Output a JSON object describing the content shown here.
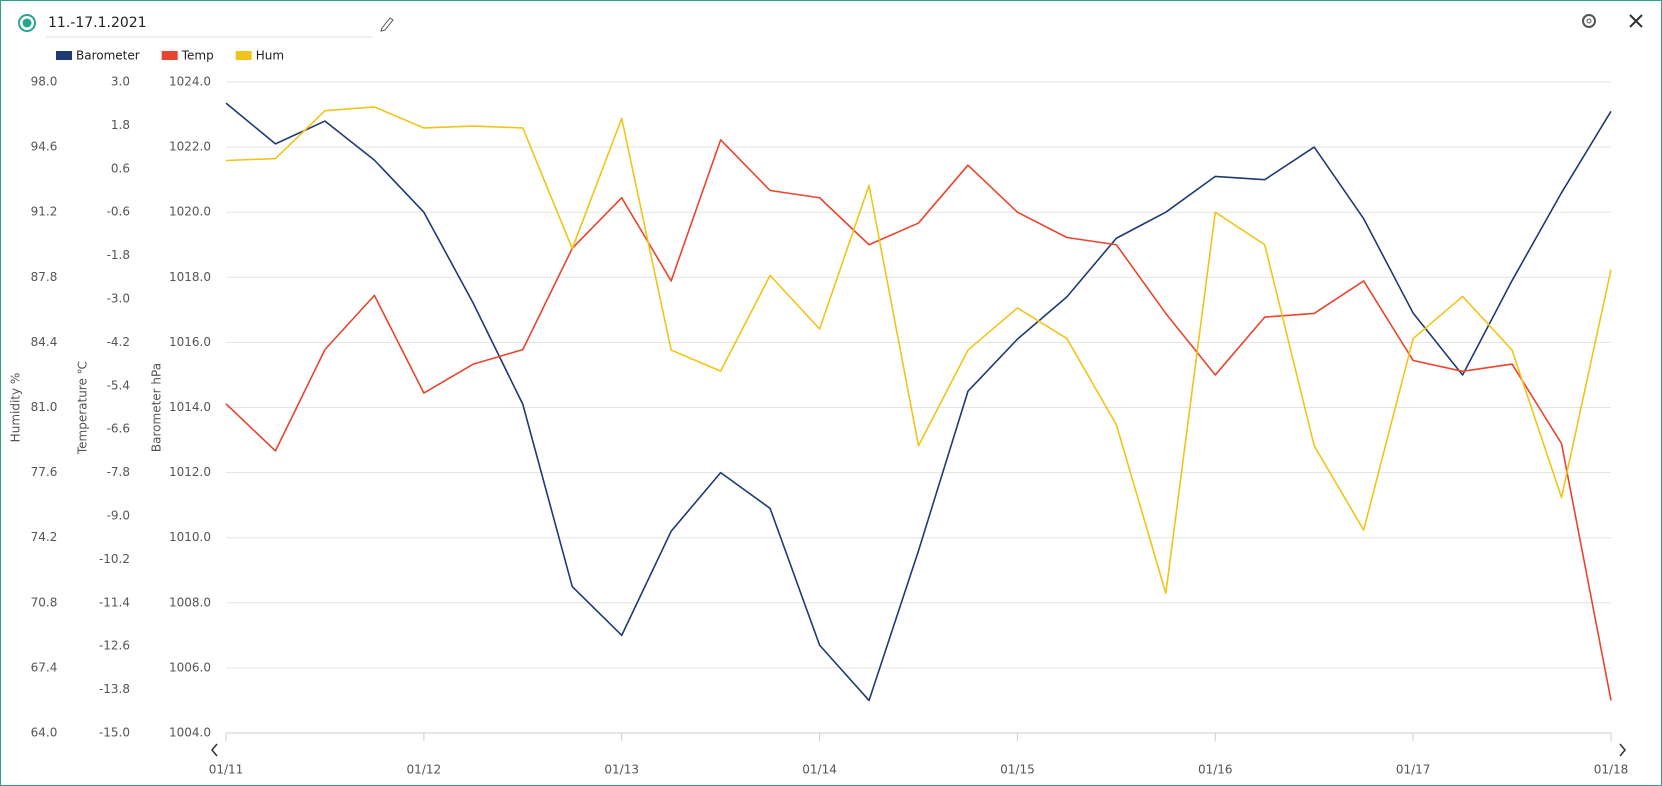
{
  "header": {
    "title": "11.-17.1.2021"
  },
  "chart_data": {
    "type": "line",
    "xlim": [
      11,
      18
    ],
    "xticks": [
      {
        "value": 11,
        "label": "01/11"
      },
      {
        "value": 12,
        "label": "01/12"
      },
      {
        "value": 13,
        "label": "01/13"
      },
      {
        "value": 14,
        "label": "01/14"
      },
      {
        "value": 15,
        "label": "01/15"
      },
      {
        "value": 16,
        "label": "01/16"
      },
      {
        "value": 17,
        "label": "01/17"
      },
      {
        "value": 18,
        "label": "01/18"
      }
    ],
    "ylabel": "Barometer hPa",
    "ylim": [
      1004,
      1024
    ],
    "yticks": [
      {
        "value": 1004,
        "label": "1004.0"
      },
      {
        "value": 1006,
        "label": "1006.0"
      },
      {
        "value": 1008,
        "label": "1008.0"
      },
      {
        "value": 1010,
        "label": "1010.0"
      },
      {
        "value": 1012,
        "label": "1012.0"
      },
      {
        "value": 1014,
        "label": "1014.0"
      },
      {
        "value": 1016,
        "label": "1016.0"
      },
      {
        "value": 1018,
        "label": "1018.0"
      },
      {
        "value": 1020,
        "label": "1020.0"
      },
      {
        "value": 1022,
        "label": "1022.0"
      },
      {
        "value": 1024,
        "label": "1024.0"
      }
    ],
    "y2label": "Temperature ℃",
    "y2lim": [
      -15,
      3
    ],
    "y2ticks": [
      {
        "value": -15,
        "label": "-15.0"
      },
      {
        "value": -13.8,
        "label": "-13.8"
      },
      {
        "value": -12.6,
        "label": "-12.6"
      },
      {
        "value": -11.4,
        "label": "-11.4"
      },
      {
        "value": -10.2,
        "label": "-10.2"
      },
      {
        "value": -9,
        "label": "-9.0"
      },
      {
        "value": -7.8,
        "label": "-7.8"
      },
      {
        "value": -6.6,
        "label": "-6.6"
      },
      {
        "value": -5.4,
        "label": "-5.4"
      },
      {
        "value": -4.2,
        "label": "-4.2"
      },
      {
        "value": -3,
        "label": "-3.0"
      },
      {
        "value": -1.8,
        "label": "-1.8"
      },
      {
        "value": -0.6,
        "label": "-0.6"
      },
      {
        "value": 0.6,
        "label": "0.6"
      },
      {
        "value": 1.8,
        "label": "1.8"
      },
      {
        "value": 3,
        "label": "3.0"
      }
    ],
    "y3label": "Humidity %",
    "y3lim": [
      64,
      98
    ],
    "y3ticks": [
      {
        "value": 64,
        "label": "64.0"
      },
      {
        "value": 67.4,
        "label": "67.4"
      },
      {
        "value": 70.8,
        "label": "70.8"
      },
      {
        "value": 74.2,
        "label": "74.2"
      },
      {
        "value": 77.6,
        "label": "77.6"
      },
      {
        "value": 81,
        "label": "81.0"
      },
      {
        "value": 84.4,
        "label": "84.4"
      },
      {
        "value": 87.8,
        "label": "87.8"
      },
      {
        "value": 91.2,
        "label": "91.2"
      },
      {
        "value": 94.6,
        "label": "94.6"
      },
      {
        "value": 98,
        "label": "98.0"
      }
    ],
    "grid": true,
    "legend": "top-left",
    "x": [
      11,
      11.25,
      11.5,
      11.75,
      12,
      12.25,
      12.5,
      12.75,
      13,
      13.25,
      13.5,
      13.75,
      14,
      14.25,
      14.5,
      14.75,
      15,
      15.25,
      15.5,
      15.75,
      16,
      16.25,
      16.5,
      16.75,
      17,
      17.25,
      17.5,
      17.75,
      18
    ],
    "series": [
      {
        "name": "Barometer",
        "color": "#1f3b73",
        "axis": "y",
        "values": [
          1023.35,
          1022.1,
          1022.8,
          1021.6,
          1020.0,
          1017.2,
          1014.1,
          1008.5,
          1007.0,
          1010.2,
          1012.0,
          1010.9,
          1006.7,
          1005.0,
          1009.6,
          1014.5,
          1016.1,
          1017.4,
          1019.2,
          1020.0,
          1021.1,
          1021.0,
          1022.0,
          1019.8,
          1016.9,
          1015.0,
          1017.9,
          1020.6,
          1023.1
        ]
      },
      {
        "name": "Temp",
        "color": "#e8452f",
        "axis": "y2",
        "values": [
          -5.9,
          -7.2,
          -4.4,
          -2.9,
          -5.6,
          -4.8,
          -4.4,
          -1.6,
          -0.2,
          -2.5,
          1.4,
          0.0,
          -0.2,
          -1.5,
          -0.9,
          0.7,
          -0.6,
          -1.3,
          -1.5,
          -3.4,
          -5.1,
          -3.5,
          -3.4,
          -2.5,
          -4.7,
          -5.0,
          -4.8,
          -7.0,
          -14.1
        ]
      },
      {
        "name": "Hum",
        "color": "#f0c419",
        "axis": "y3",
        "values": [
          93.9,
          94.0,
          96.5,
          96.7,
          95.6,
          95.7,
          95.6,
          89.3,
          96.1,
          84.0,
          82.9,
          87.9,
          85.1,
          92.6,
          79.0,
          84.0,
          86.2,
          84.6,
          80.1,
          71.3,
          91.2,
          89.5,
          79.0,
          74.6,
          84.6,
          86.8,
          84.0,
          76.3,
          88.2
        ]
      }
    ]
  }
}
